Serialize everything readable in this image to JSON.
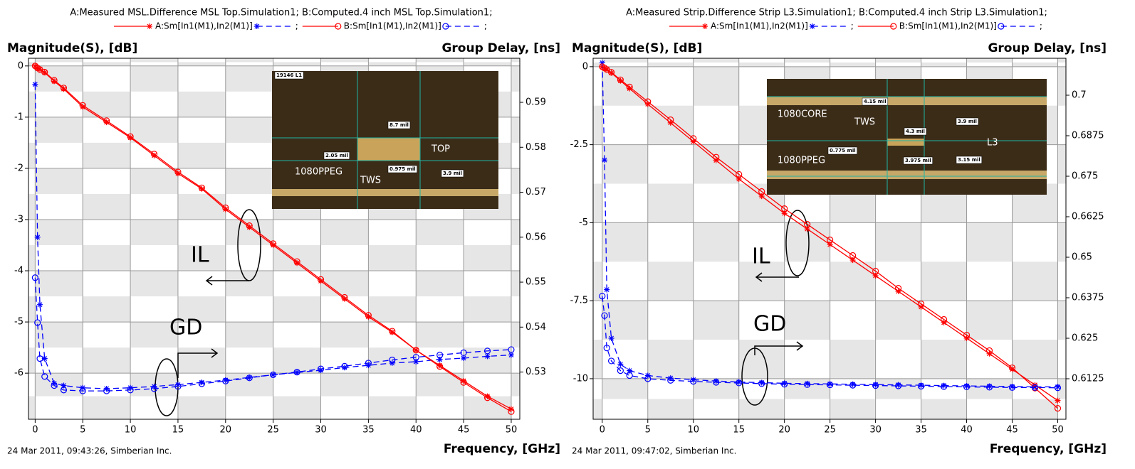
{
  "chart_data": [
    {
      "type": "line",
      "title": "A:Measured MSL.Difference MSL Top.Simulation1; B:Computed.4 inch MSL Top.Simulation1;",
      "legend_separator": ";",
      "ylabel": "Magnitude(S), [dB]",
      "y2label": "Group Delay, [ns]",
      "xlabel": "Frequency, [GHz]",
      "footer": "24 Mar 2011, 09:43:26, Simberian Inc.",
      "grid": true,
      "xlim": [
        -0.7,
        50.9
      ],
      "xticks": [
        0,
        5,
        10,
        15,
        20,
        25,
        30,
        35,
        40,
        45,
        50
      ],
      "ylim": [
        -6.9,
        0.15
      ],
      "yticks": [
        0,
        -1,
        -2,
        -3,
        -4,
        -5,
        -6
      ],
      "y2lim": [
        0.5195,
        0.5998
      ],
      "y2ticks": [
        0.53,
        0.54,
        0.55,
        0.56,
        0.57,
        0.58,
        0.59
      ],
      "x": [
        0,
        0.25,
        0.5,
        1,
        2,
        3,
        5,
        7.5,
        10,
        12.5,
        15,
        17.5,
        20,
        22.5,
        25,
        27.5,
        30,
        32.5,
        35,
        37.5,
        40,
        42.5,
        45,
        47.5,
        50
      ],
      "series": [
        {
          "name": "A:Sm[In1(M1),In2(M1)]",
          "color": "#ff0000",
          "marker": "star",
          "values": [
            0,
            -0.04,
            -0.07,
            -0.13,
            -0.3,
            -0.45,
            -0.8,
            -1.1,
            -1.4,
            -1.75,
            -2.1,
            -2.4,
            -2.8,
            -3.15,
            -3.5,
            -3.85,
            -4.2,
            -4.55,
            -4.9,
            -5.2,
            -5.55,
            -5.85,
            -6.15,
            -6.45,
            -6.7
          ]
        },
        {
          "color": "#0000ff",
          "marker": "star",
          "dashed": true,
          "axis": "y2",
          "values": [
            0.594,
            0.56,
            0.545,
            0.533,
            0.5275,
            0.527,
            0.5265,
            0.5263,
            0.5265,
            0.5268,
            0.5272,
            0.5277,
            0.5282,
            0.5288,
            0.5294,
            0.5299,
            0.5304,
            0.531,
            0.5315,
            0.532,
            0.5323,
            0.5328,
            0.5331,
            0.5335,
            0.5338
          ]
        },
        {
          "name": "B:Sm[In1(M1),In2(M1)]",
          "color": "#ff0000",
          "marker": "circle",
          "values": [
            0,
            -0.04,
            -0.07,
            -0.12,
            -0.28,
            -0.43,
            -0.77,
            -1.07,
            -1.38,
            -1.72,
            -2.07,
            -2.38,
            -2.77,
            -3.12,
            -3.47,
            -3.82,
            -4.17,
            -4.52,
            -4.87,
            -5.18,
            -5.55,
            -5.87,
            -6.18,
            -6.48,
            -6.75
          ]
        },
        {
          "color": "#0000ff",
          "marker": "circle",
          "dashed": true,
          "axis": "y2",
          "values": [
            0.551,
            0.541,
            0.533,
            0.529,
            0.527,
            0.526,
            0.5258,
            0.5258,
            0.526,
            0.5263,
            0.5268,
            0.5274,
            0.528,
            0.5287,
            0.5294,
            0.53,
            0.5307,
            0.5313,
            0.532,
            0.5327,
            0.5333,
            0.5338,
            0.5343,
            0.5347,
            0.535
          ]
        }
      ],
      "annotations": [
        "IL",
        "GD"
      ],
      "inset_labels": [
        "19146 L1",
        "8.7 mil",
        "2.05 mil",
        "0.975 mil",
        "TOP",
        "1080PPEG",
        "TWS",
        "3.9 mil"
      ]
    },
    {
      "type": "line",
      "title": "A:Measured Strip.Difference Strip L3.Simulation1; B:Computed.4 inch Strip L3.Simulation1;",
      "legend_separator": ";",
      "ylabel": "Magnitude(S), [dB]",
      "y2label": "Group Delay, [ns]",
      "xlabel": "Frequency, [GHz]",
      "footer": "24 Mar 2011, 09:47:02, Simberian Inc.",
      "grid": true,
      "xlim": [
        -1,
        50.9
      ],
      "xticks": [
        0,
        5,
        10,
        15,
        20,
        25,
        30,
        35,
        40,
        45,
        50
      ],
      "ylim": [
        -11.3,
        0.27
      ],
      "yticks": [
        0,
        -2.5,
        -5,
        -7.5,
        -10
      ],
      "y2lim": [
        0.6,
        0.7114
      ],
      "y2ticks": [
        0.6125,
        0.625,
        0.6375,
        0.65,
        0.6625,
        0.675,
        0.6875,
        0.7
      ],
      "x": [
        0,
        0.25,
        0.5,
        1,
        2,
        3,
        5,
        7.5,
        10,
        12.5,
        15,
        17.5,
        20,
        22.5,
        25,
        27.5,
        30,
        32.5,
        35,
        37.5,
        40,
        42.5,
        45,
        47.5,
        50
      ],
      "series": [
        {
          "name": "A:Sm[In1(M1),In2(M1)]",
          "color": "#ff0000",
          "marker": "star",
          "values": [
            0,
            -0.05,
            -0.1,
            -0.2,
            -0.45,
            -0.7,
            -1.2,
            -1.8,
            -2.4,
            -3.0,
            -3.6,
            -4.15,
            -4.7,
            -5.2,
            -5.7,
            -6.2,
            -6.7,
            -7.2,
            -7.7,
            -8.2,
            -8.7,
            -9.2,
            -9.7,
            -10.2,
            -10.7
          ]
        },
        {
          "color": "#0000ff",
          "marker": "star",
          "dashed": true,
          "axis": "y2",
          "values": [
            0.71,
            0.68,
            0.64,
            0.625,
            0.617,
            0.615,
            0.6135,
            0.6127,
            0.6122,
            0.6118,
            0.6115,
            0.6113,
            0.6111,
            0.611,
            0.6109,
            0.6108,
            0.6107,
            0.6106,
            0.6105,
            0.6104,
            0.6103,
            0.6102,
            0.6101,
            0.61,
            0.61
          ]
        },
        {
          "name": "B:Sm[In1(M1),In2(M1)]",
          "color": "#ff0000",
          "marker": "circle",
          "values": [
            0,
            -0.04,
            -0.09,
            -0.18,
            -0.42,
            -0.65,
            -1.12,
            -1.7,
            -2.3,
            -2.9,
            -3.45,
            -4.0,
            -4.55,
            -5.05,
            -5.55,
            -6.05,
            -6.55,
            -7.1,
            -7.6,
            -8.1,
            -8.6,
            -9.1,
            -9.65,
            -10.3,
            -10.95
          ]
        },
        {
          "color": "#0000ff",
          "marker": "circle",
          "dashed": true,
          "axis": "y2",
          "values": [
            0.638,
            0.632,
            0.622,
            0.618,
            0.615,
            0.6135,
            0.6125,
            0.612,
            0.6117,
            0.6114,
            0.6112,
            0.611,
            0.6108,
            0.6107,
            0.6106,
            0.6105,
            0.6104,
            0.6103,
            0.6102,
            0.6101,
            0.61,
            0.6099,
            0.6098,
            0.6098,
            0.6097
          ]
        }
      ],
      "annotations": [
        "IL",
        "GD"
      ],
      "inset_labels": [
        "4.15 mil",
        "1080CORE",
        "TWS",
        "4.3 mil",
        "3.9 mil",
        "L3",
        "0.775 mil",
        "1080PPEG",
        "3.975 mil",
        "3.15 mil"
      ]
    }
  ]
}
